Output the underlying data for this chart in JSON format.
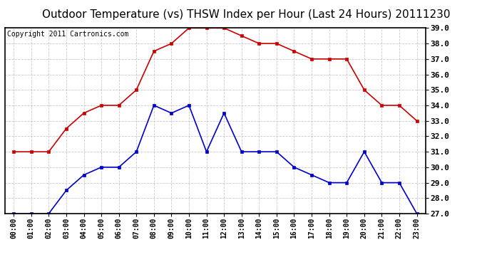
{
  "title": "Outdoor Temperature (vs) THSW Index per Hour (Last 24 Hours) 20111230",
  "copyright_text": "Copyright 2011 Cartronics.com",
  "hours": [
    "00:00",
    "01:00",
    "02:00",
    "03:00",
    "04:00",
    "05:00",
    "06:00",
    "07:00",
    "08:00",
    "09:00",
    "10:00",
    "11:00",
    "12:00",
    "13:00",
    "14:00",
    "15:00",
    "16:00",
    "17:00",
    "18:00",
    "19:00",
    "20:00",
    "21:00",
    "22:00",
    "23:00"
  ],
  "temp_red": [
    31.0,
    31.0,
    31.0,
    32.5,
    33.5,
    34.0,
    34.0,
    35.0,
    37.5,
    38.0,
    39.0,
    39.0,
    39.0,
    38.5,
    38.0,
    38.0,
    37.5,
    37.0,
    37.0,
    37.0,
    35.0,
    34.0,
    34.0,
    33.0
  ],
  "thsw_blue": [
    27.0,
    27.0,
    27.0,
    28.5,
    29.5,
    30.0,
    30.0,
    31.0,
    34.0,
    33.5,
    34.0,
    31.0,
    33.5,
    31.0,
    31.0,
    31.0,
    30.0,
    29.5,
    29.0,
    29.0,
    31.0,
    29.0,
    29.0,
    27.0
  ],
  "ylim_min": 27.0,
  "ylim_max": 39.0,
  "yticks": [
    27.0,
    28.0,
    29.0,
    30.0,
    31.0,
    32.0,
    33.0,
    34.0,
    35.0,
    36.0,
    37.0,
    38.0,
    39.0
  ],
  "red_color": "#cc0000",
  "blue_color": "#0000cc",
  "grid_color": "#bbbbbb",
  "bg_color": "#ffffff",
  "title_fontsize": 11,
  "copyright_fontsize": 7,
  "tick_fontsize": 8,
  "xtick_fontsize": 7
}
